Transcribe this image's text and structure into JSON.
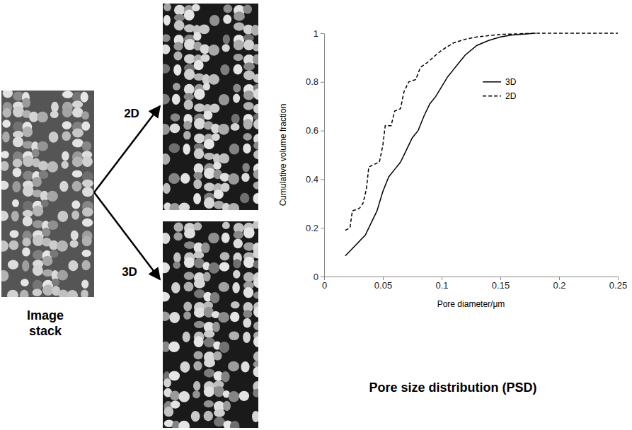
{
  "chart_data": {
    "type": "line",
    "x_label": "Pore diameter/μm",
    "y_label": "Cumulative volume fraction",
    "xlim": [
      0,
      0.25
    ],
    "xticks": [
      0,
      0.05,
      0.1,
      0.15,
      0.2,
      0.25
    ],
    "ylim": [
      0,
      1
    ],
    "yticks": [
      0,
      0.2,
      0.4,
      0.6,
      0.8,
      1
    ],
    "grid": false,
    "legend": "top-right",
    "series": [
      {
        "name": "3D",
        "color": "#000000",
        "line_style": "solid",
        "x": [
          0.018,
          0.025,
          0.035,
          0.04,
          0.045,
          0.05,
          0.055,
          0.06,
          0.065,
          0.07,
          0.075,
          0.08,
          0.085,
          0.09,
          0.095,
          0.1,
          0.105,
          0.11,
          0.115,
          0.12,
          0.13,
          0.14,
          0.15,
          0.16,
          0.18
        ],
        "values": [
          0.085,
          0.12,
          0.17,
          0.22,
          0.27,
          0.35,
          0.41,
          0.44,
          0.47,
          0.52,
          0.57,
          0.6,
          0.66,
          0.71,
          0.74,
          0.78,
          0.82,
          0.85,
          0.88,
          0.91,
          0.95,
          0.97,
          0.985,
          0.993,
          1.0
        ]
      },
      {
        "name": "2D",
        "color": "#000000",
        "line_style": "dashed",
        "x": [
          0.018,
          0.022,
          0.024,
          0.03,
          0.033,
          0.036,
          0.038,
          0.042,
          0.047,
          0.05,
          0.052,
          0.057,
          0.06,
          0.065,
          0.068,
          0.072,
          0.078,
          0.082,
          0.088,
          0.095,
          0.1,
          0.11,
          0.12,
          0.13,
          0.15,
          0.18,
          0.25
        ],
        "values": [
          0.19,
          0.2,
          0.27,
          0.28,
          0.3,
          0.36,
          0.45,
          0.46,
          0.47,
          0.54,
          0.62,
          0.62,
          0.68,
          0.69,
          0.76,
          0.8,
          0.81,
          0.86,
          0.88,
          0.91,
          0.93,
          0.96,
          0.975,
          0.985,
          0.995,
          1.0,
          1.0
        ]
      }
    ]
  },
  "figure": {
    "image_label": "Image stack",
    "arrow_labels": [
      "2D",
      "3D"
    ],
    "caption": "Pore size distribution (PSD)"
  }
}
